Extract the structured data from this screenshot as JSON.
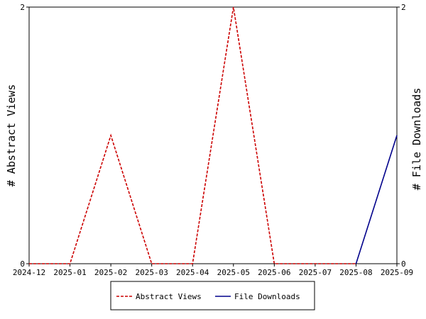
{
  "chart_data": {
    "type": "line",
    "x": [
      "2024-12",
      "2025-01",
      "2025-02",
      "2025-03",
      "2025-04",
      "2025-05",
      "2025-06",
      "2025-07",
      "2025-08",
      "2025-09"
    ],
    "series": [
      {
        "name": "Abstract Views",
        "axis": "left",
        "color": "#cc0000",
        "dash": "dashed",
        "values": [
          0,
          0,
          1,
          0,
          0,
          2,
          0,
          0,
          0,
          null
        ]
      },
      {
        "name": "File Downloads",
        "axis": "right",
        "color": "#00008b",
        "dash": "solid",
        "values": [
          null,
          null,
          null,
          null,
          null,
          null,
          null,
          null,
          0,
          1
        ]
      }
    ],
    "ylabel": "# Abstract Views",
    "y2label": "# File Downloads",
    "ylim": [
      0,
      2
    ],
    "y2lim": [
      0,
      2
    ],
    "yticks": [
      "0",
      "2"
    ],
    "y2ticks": [
      "0",
      "2"
    ],
    "grid": false,
    "legend_position": "bottom-center"
  }
}
